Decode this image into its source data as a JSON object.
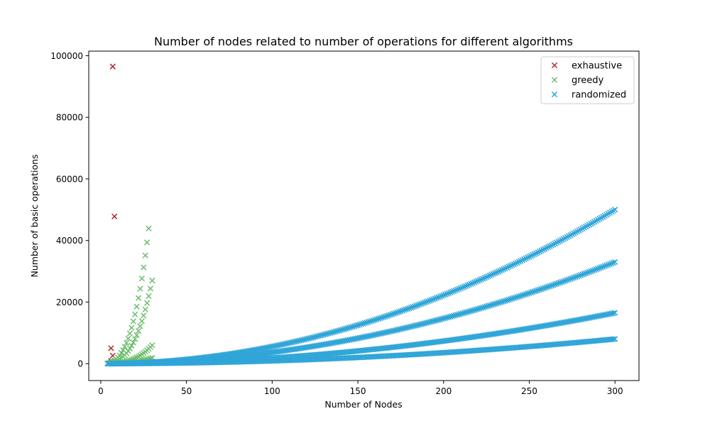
{
  "chart_data": {
    "type": "scatter",
    "title": "Number of nodes related to number of operations for different algorithms",
    "xlabel": "Number of Nodes",
    "ylabel": "Number of basic operations",
    "xlim": [
      -7,
      314
    ],
    "ylim": [
      -5500,
      101500
    ],
    "xticks": [
      0,
      50,
      100,
      150,
      200,
      250,
      300
    ],
    "yticks": [
      0,
      20000,
      40000,
      60000,
      80000,
      100000
    ],
    "grid": false,
    "legend_position": "top-right",
    "marker": "x",
    "series": [
      {
        "name": "exhaustive",
        "color": "#b2282e",
        "points": [
          [
            4,
            16
          ],
          [
            5,
            60
          ],
          [
            5,
            120
          ],
          [
            6,
            300
          ],
          [
            6,
            900
          ],
          [
            6,
            5000
          ],
          [
            7,
            2600
          ],
          [
            7,
            96500
          ],
          [
            8,
            47800
          ]
        ]
      },
      {
        "name": "greedy",
        "color": "#6dbd6d",
        "curves": [
          {
            "x_from": 4,
            "x_to": 28,
            "coef": 2.0,
            "power": 3
          },
          {
            "x_from": 4,
            "x_to": 30,
            "coef": 1.0,
            "power": 3
          },
          {
            "x_from": 4,
            "x_to": 30,
            "coef": 0.22,
            "power": 3
          },
          {
            "x_from": 4,
            "x_to": 30,
            "coef": 0.07,
            "power": 3
          },
          {
            "x_from": 4,
            "x_to": 30,
            "coef": 0.025,
            "power": 3
          }
        ]
      },
      {
        "name": "randomized",
        "color": "#2fa5d8",
        "curves": [
          {
            "x_from": 4,
            "x_to": 300,
            "coef": 0.5556,
            "power": 2
          },
          {
            "x_from": 4,
            "x_to": 300,
            "coef": 0.3667,
            "power": 2
          },
          {
            "x_from": 4,
            "x_to": 300,
            "coef": 0.1833,
            "power": 2
          },
          {
            "x_from": 4,
            "x_to": 300,
            "coef": 0.0889,
            "power": 2
          }
        ]
      }
    ]
  }
}
